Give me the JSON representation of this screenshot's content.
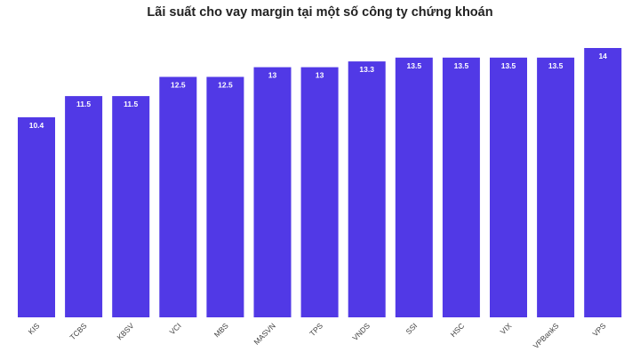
{
  "chart_data": {
    "type": "bar",
    "title": "Lãi suất cho vay margin tại một số công ty chứng khoán",
    "xlabel": "",
    "ylabel": "",
    "categories": [
      "KIS",
      "TCBS",
      "KBSV",
      "VCI",
      "MBS",
      "MASVN",
      "TPS",
      "VNDS",
      "SSI",
      "HSC",
      "VIX",
      "VPBankS",
      "VPS"
    ],
    "values": [
      10.4,
      11.5,
      11.5,
      12.5,
      12.5,
      13,
      13,
      13.3,
      13.5,
      13.5,
      13.5,
      13.5,
      14
    ],
    "value_labels": [
      "10.4",
      "11.5",
      "11.5",
      "12.5",
      "12.5",
      "13",
      "13",
      "13.3",
      "13.5",
      "13.5",
      "13.5",
      "13.5",
      "14"
    ],
    "ylim": [
      0,
      14
    ],
    "grid": false,
    "legend": "none",
    "colors": {
      "bar": "#5139e6",
      "bar_label": "#ffffff",
      "tick_label": "#444444",
      "title": "#222222"
    }
  }
}
